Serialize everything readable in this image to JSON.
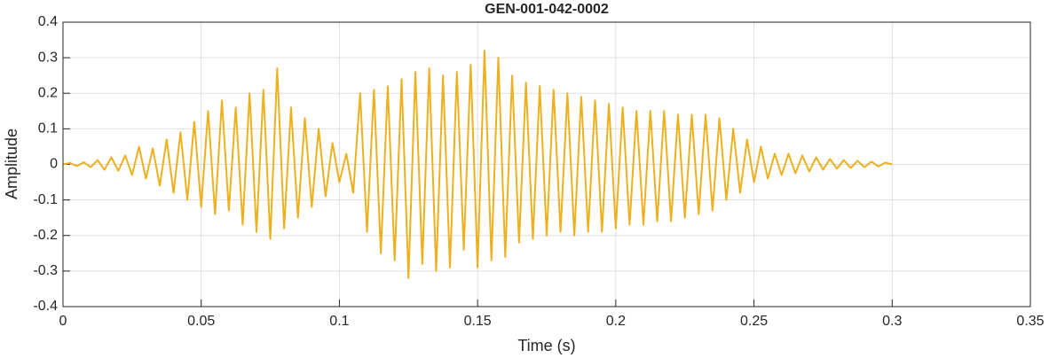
{
  "chart_data": {
    "type": "line",
    "title": "GEN-001-042-0002",
    "x_label": "Time (s)",
    "y_label": "Amplitude",
    "color": "#EDB120",
    "grid": true,
    "xlim": [
      0,
      0.35
    ],
    "xticks": [
      0,
      0.05,
      0.1,
      0.15,
      0.2,
      0.25,
      0.3,
      0.35
    ],
    "ylim": [
      -0.4,
      0.4
    ],
    "yticks": [
      -0.4,
      -0.3,
      -0.2,
      -0.1,
      0,
      0.1,
      0.2,
      0.3,
      0.4
    ],
    "x": [
      0,
      0.0025,
      0.005,
      0.0075,
      0.01,
      0.0125,
      0.015,
      0.0175,
      0.02,
      0.0225,
      0.025,
      0.0275,
      0.03,
      0.0325,
      0.035,
      0.0375,
      0.04,
      0.0425,
      0.045,
      0.0475,
      0.05,
      0.0525,
      0.055,
      0.0575,
      0.06,
      0.0625,
      0.065,
      0.0675,
      0.07,
      0.0725,
      0.075,
      0.0775,
      0.08,
      0.0825,
      0.085,
      0.0875,
      0.09,
      0.0925,
      0.095,
      0.0975,
      0.1,
      0.1025,
      0.105,
      0.1075,
      0.11,
      0.1125,
      0.115,
      0.1175,
      0.12,
      0.1225,
      0.125,
      0.1275,
      0.13,
      0.1325,
      0.135,
      0.1375,
      0.14,
      0.1425,
      0.145,
      0.1475,
      0.15,
      0.1525,
      0.155,
      0.1575,
      0.16,
      0.1625,
      0.165,
      0.1675,
      0.17,
      0.1725,
      0.175,
      0.1775,
      0.18,
      0.1825,
      0.185,
      0.1875,
      0.19,
      0.1925,
      0.195,
      0.1975,
      0.2,
      0.2025,
      0.205,
      0.2075,
      0.21,
      0.2125,
      0.215,
      0.2175,
      0.22,
      0.2225,
      0.225,
      0.2275,
      0.23,
      0.2325,
      0.235,
      0.2375,
      0.24,
      0.2425,
      0.245,
      0.2475,
      0.25,
      0.2525,
      0.255,
      0.2575,
      0.26,
      0.2625,
      0.265,
      0.2675,
      0.27,
      0.2725,
      0.275,
      0.2775,
      0.28,
      0.2825,
      0.285,
      0.2875,
      0.29,
      0.2925,
      0.295,
      0.2975,
      0.3
    ],
    "values": [
      0,
      0.004,
      -0.005,
      0.006,
      -0.008,
      0.012,
      -0.015,
      0.02,
      -0.018,
      0.025,
      -0.03,
      0.05,
      -0.04,
      0.045,
      -0.06,
      0.07,
      -0.08,
      0.09,
      -0.1,
      0.12,
      -0.12,
      0.15,
      -0.14,
      0.18,
      -0.13,
      0.16,
      -0.17,
      0.2,
      -0.19,
      0.21,
      -0.21,
      0.27,
      -0.18,
      0.16,
      -0.15,
      0.13,
      -0.12,
      0.1,
      -0.09,
      0.06,
      -0.05,
      0.03,
      -0.08,
      0.2,
      -0.19,
      0.21,
      -0.25,
      0.22,
      -0.27,
      0.24,
      -0.32,
      0.26,
      -0.28,
      0.27,
      -0.3,
      0.25,
      -0.29,
      0.26,
      -0.24,
      0.28,
      -0.29,
      0.32,
      -0.27,
      0.3,
      -0.26,
      0.25,
      -0.22,
      0.23,
      -0.21,
      0.22,
      -0.2,
      0.21,
      -0.19,
      0.2,
      -0.2,
      0.19,
      -0.19,
      0.18,
      -0.19,
      0.17,
      -0.18,
      0.16,
      -0.17,
      0.15,
      -0.17,
      0.15,
      -0.16,
      0.15,
      -0.16,
      0.14,
      -0.15,
      0.14,
      -0.14,
      0.14,
      -0.13,
      0.13,
      -0.1,
      0.1,
      -0.08,
      0.07,
      -0.05,
      0.05,
      -0.04,
      0.03,
      -0.03,
      0.03,
      -0.025,
      0.025,
      -0.02,
      0.02,
      -0.015,
      0.015,
      -0.012,
      0.012,
      -0.01,
      0.01,
      -0.008,
      0.008,
      -0.006,
      0.005,
      0
    ]
  }
}
